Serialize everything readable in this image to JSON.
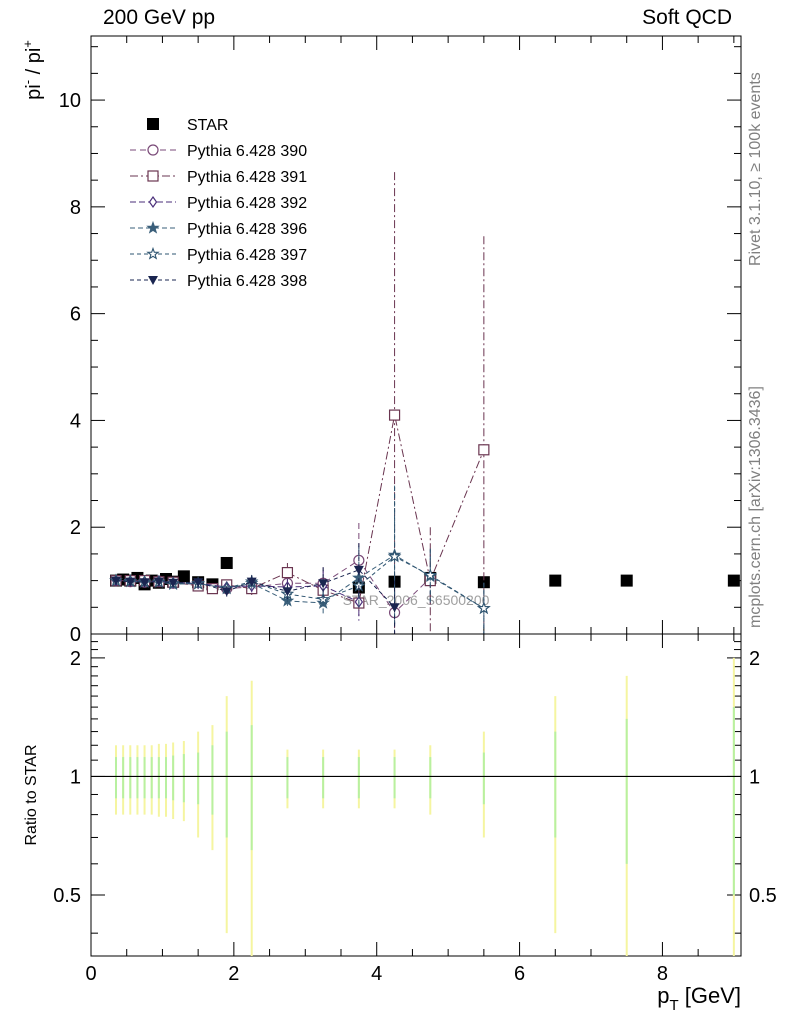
{
  "header": {
    "left": "200 GeV pp",
    "right": "Soft QCD"
  },
  "side_text": {
    "rivet": "Rivet 3.1.10, ≥ 100k events",
    "mcplots": "mcplots.cern.ch [arXiv:1306.3436]"
  },
  "watermark": "STAR_2006_S6500200",
  "chart_data": [
    {
      "type": "scatter",
      "panel": "main",
      "xlabel": "p_T [GeV]",
      "ylabel": "pi- / pi+",
      "xlim": [
        0,
        9.1
      ],
      "ylim": [
        0,
        11.2
      ],
      "x_ticks": [
        0,
        2,
        4,
        6,
        8
      ],
      "y_ticks": [
        0,
        2,
        4,
        6,
        8,
        10
      ],
      "legend_position": "top-left",
      "series": [
        {
          "name": "STAR",
          "color": "#000000",
          "marker": "filled-square",
          "points": [
            {
              "x": 0.35,
              "y": 1.0
            },
            {
              "x": 0.45,
              "y": 1.02
            },
            {
              "x": 0.55,
              "y": 1.0
            },
            {
              "x": 0.65,
              "y": 1.05
            },
            {
              "x": 0.75,
              "y": 0.93
            },
            {
              "x": 0.85,
              "y": 1.0
            },
            {
              "x": 0.95,
              "y": 0.96
            },
            {
              "x": 1.05,
              "y": 1.03
            },
            {
              "x": 1.15,
              "y": 0.98
            },
            {
              "x": 1.3,
              "y": 1.08
            },
            {
              "x": 1.5,
              "y": 0.97
            },
            {
              "x": 1.7,
              "y": 0.93
            },
            {
              "x": 1.9,
              "y": 1.33
            },
            {
              "x": 3.75,
              "y": 0.87
            },
            {
              "x": 4.25,
              "y": 0.98
            },
            {
              "x": 4.75,
              "y": 1.05
            },
            {
              "x": 5.5,
              "y": 0.97
            },
            {
              "x": 6.5,
              "y": 1.0
            },
            {
              "x": 7.5,
              "y": 1.0
            },
            {
              "x": 9.0,
              "y": 1.0
            }
          ]
        },
        {
          "name": "Pythia 6.428 390",
          "color": "#7a4a78",
          "marker": "open-circle",
          "dash": "6,4",
          "points": [
            {
              "x": 0.35,
              "y": 1.0,
              "err": 0.05
            },
            {
              "x": 0.55,
              "y": 0.98,
              "err": 0.05
            },
            {
              "x": 0.75,
              "y": 0.97,
              "err": 0.05
            },
            {
              "x": 0.95,
              "y": 0.99,
              "err": 0.06
            },
            {
              "x": 1.15,
              "y": 0.95,
              "err": 0.07
            },
            {
              "x": 1.5,
              "y": 0.93,
              "err": 0.08
            },
            {
              "x": 1.9,
              "y": 0.85,
              "err": 0.1
            },
            {
              "x": 2.25,
              "y": 0.88,
              "err": 0.12
            },
            {
              "x": 2.75,
              "y": 0.95,
              "err": 0.15
            },
            {
              "x": 3.25,
              "y": 0.95,
              "err": 0.3
            },
            {
              "x": 3.75,
              "y": 1.38,
              "err": 0.7
            },
            {
              "x": 4.25,
              "y": 0.4,
              "err": 0.4
            },
            {
              "x": 4.75,
              "y": 1.05,
              "err": 0.5
            }
          ]
        },
        {
          "name": "Pythia 6.428 391",
          "color": "#6a3550",
          "marker": "open-square",
          "dash": "8,3,2,3",
          "points": [
            {
              "x": 0.35,
              "y": 1.0,
              "err": 0.05
            },
            {
              "x": 0.55,
              "y": 1.0,
              "err": 0.05
            },
            {
              "x": 0.75,
              "y": 1.0,
              "err": 0.05
            },
            {
              "x": 0.95,
              "y": 0.98,
              "err": 0.06
            },
            {
              "x": 1.15,
              "y": 0.97,
              "err": 0.07
            },
            {
              "x": 1.5,
              "y": 0.9,
              "err": 0.08
            },
            {
              "x": 1.7,
              "y": 0.85,
              "err": 0.08
            },
            {
              "x": 1.9,
              "y": 0.92,
              "err": 0.1
            },
            {
              "x": 2.25,
              "y": 0.85,
              "err": 0.12
            },
            {
              "x": 2.75,
              "y": 1.15,
              "err": 0.18
            },
            {
              "x": 3.25,
              "y": 0.82,
              "err": 0.3
            },
            {
              "x": 3.75,
              "y": 0.58,
              "err": 0.3
            },
            {
              "x": 4.25,
              "y": 4.1,
              "err": 4.55
            },
            {
              "x": 4.75,
              "y": 1.0,
              "err": 1.0
            },
            {
              "x": 5.5,
              "y": 3.45,
              "err": 4.0
            }
          ]
        },
        {
          "name": "Pythia 6.428 392",
          "color": "#4a2e7a",
          "marker": "open-diamond",
          "dash": "6,3",
          "points": [
            {
              "x": 0.35,
              "y": 1.0,
              "err": 0.05
            },
            {
              "x": 0.55,
              "y": 0.99,
              "err": 0.05
            },
            {
              "x": 0.75,
              "y": 0.98,
              "err": 0.05
            },
            {
              "x": 0.95,
              "y": 0.99,
              "err": 0.06
            },
            {
              "x": 1.15,
              "y": 0.96,
              "err": 0.07
            },
            {
              "x": 1.5,
              "y": 0.95,
              "err": 0.08
            },
            {
              "x": 1.9,
              "y": 0.88,
              "err": 0.1
            },
            {
              "x": 2.25,
              "y": 0.9,
              "err": 0.12
            },
            {
              "x": 2.75,
              "y": 0.88,
              "err": 0.15
            },
            {
              "x": 3.25,
              "y": 0.9,
              "err": 0.3
            },
            {
              "x": 3.75,
              "y": 0.6,
              "err": 0.35
            }
          ]
        },
        {
          "name": "Pythia 6.428 396",
          "color": "#3a5f7a",
          "marker": "filled-star",
          "dash": "5,3",
          "points": [
            {
              "x": 0.35,
              "y": 1.0,
              "err": 0.05
            },
            {
              "x": 0.55,
              "y": 0.98,
              "err": 0.05
            },
            {
              "x": 0.75,
              "y": 0.97,
              "err": 0.05
            },
            {
              "x": 0.95,
              "y": 0.98,
              "err": 0.06
            },
            {
              "x": 1.15,
              "y": 0.93,
              "err": 0.07
            },
            {
              "x": 1.5,
              "y": 0.95,
              "err": 0.08
            },
            {
              "x": 1.9,
              "y": 0.85,
              "err": 0.1
            },
            {
              "x": 2.25,
              "y": 0.95,
              "err": 0.12
            },
            {
              "x": 2.75,
              "y": 0.62,
              "err": 0.15
            },
            {
              "x": 3.25,
              "y": 0.58,
              "err": 0.2
            },
            {
              "x": 3.75,
              "y": 1.05,
              "err": 0.6
            },
            {
              "x": 4.25,
              "y": 1.48,
              "err": 1.3
            },
            {
              "x": 4.75,
              "y": 1.08,
              "err": 0.5
            },
            {
              "x": 5.5,
              "y": 0.48,
              "err": 0.48
            }
          ]
        },
        {
          "name": "Pythia 6.428 397",
          "color": "#2e5470",
          "marker": "open-star",
          "dash": "4,3",
          "points": [
            {
              "x": 0.35,
              "y": 1.0,
              "err": 0.05
            },
            {
              "x": 0.55,
              "y": 0.99,
              "err": 0.05
            },
            {
              "x": 0.75,
              "y": 0.98,
              "err": 0.05
            },
            {
              "x": 0.95,
              "y": 0.97,
              "err": 0.06
            },
            {
              "x": 1.15,
              "y": 0.95,
              "err": 0.07
            },
            {
              "x": 1.5,
              "y": 0.94,
              "err": 0.08
            },
            {
              "x": 1.9,
              "y": 0.86,
              "err": 0.1
            },
            {
              "x": 2.25,
              "y": 0.98,
              "err": 0.12
            },
            {
              "x": 2.75,
              "y": 0.75,
              "err": 0.15
            },
            {
              "x": 3.25,
              "y": 0.65,
              "err": 0.2
            },
            {
              "x": 3.75,
              "y": 0.9,
              "err": 0.4
            },
            {
              "x": 4.25,
              "y": 1.45,
              "err": 1.3
            },
            {
              "x": 4.75,
              "y": 1.1,
              "err": 0.5
            },
            {
              "x": 5.5,
              "y": 0.48,
              "err": 0.48
            }
          ]
        },
        {
          "name": "Pythia 6.428 398",
          "color": "#1a2550",
          "marker": "filled-triangle-down",
          "dash": "4,3",
          "points": [
            {
              "x": 0.35,
              "y": 1.0,
              "err": 0.05
            },
            {
              "x": 0.55,
              "y": 0.98,
              "err": 0.05
            },
            {
              "x": 0.75,
              "y": 0.97,
              "err": 0.05
            },
            {
              "x": 0.95,
              "y": 0.98,
              "err": 0.06
            },
            {
              "x": 1.15,
              "y": 0.96,
              "err": 0.07
            },
            {
              "x": 1.5,
              "y": 0.97,
              "err": 0.08
            },
            {
              "x": 1.9,
              "y": 0.8,
              "err": 0.1
            },
            {
              "x": 2.25,
              "y": 0.98,
              "err": 0.12
            },
            {
              "x": 2.75,
              "y": 0.8,
              "err": 0.15
            },
            {
              "x": 3.25,
              "y": 0.95,
              "err": 0.3
            },
            {
              "x": 3.75,
              "y": 1.2,
              "err": 0.5
            },
            {
              "x": 4.25,
              "y": 0.5,
              "err": 0.5
            }
          ]
        }
      ]
    },
    {
      "type": "line",
      "panel": "ratio",
      "ylabel": "Ratio to STAR",
      "xlabel": "p_T [GeV]",
      "xlim": [
        0,
        9.1
      ],
      "ylim": [
        0.35,
        2.3
      ],
      "log_y": true,
      "y_ticks": [
        0.5,
        1,
        2
      ],
      "reference": 1.0,
      "band_colors": {
        "stat": "#b8f0a0",
        "total": "#f5f5a0"
      },
      "bands": [
        {
          "x": 0.35,
          "stat": 0.12,
          "total": 0.2
        },
        {
          "x": 0.45,
          "stat": 0.12,
          "total": 0.2
        },
        {
          "x": 0.55,
          "stat": 0.12,
          "total": 0.2
        },
        {
          "x": 0.65,
          "stat": 0.12,
          "total": 0.2
        },
        {
          "x": 0.75,
          "stat": 0.12,
          "total": 0.2
        },
        {
          "x": 0.85,
          "stat": 0.12,
          "total": 0.2
        },
        {
          "x": 0.95,
          "stat": 0.12,
          "total": 0.21
        },
        {
          "x": 1.05,
          "stat": 0.12,
          "total": 0.21
        },
        {
          "x": 1.15,
          "stat": 0.13,
          "total": 0.22
        },
        {
          "x": 1.3,
          "stat": 0.14,
          "total": 0.23
        },
        {
          "x": 1.5,
          "stat": 0.15,
          "total": 0.3
        },
        {
          "x": 1.7,
          "stat": 0.2,
          "total": 0.35
        },
        {
          "x": 1.9,
          "stat": 0.3,
          "total": 0.6
        },
        {
          "x": 2.25,
          "stat": 0.35,
          "total": 0.75
        },
        {
          "x": 2.75,
          "stat": 0.12,
          "total": 0.17
        },
        {
          "x": 3.25,
          "stat": 0.12,
          "total": 0.17
        },
        {
          "x": 3.75,
          "stat": 0.12,
          "total": 0.17
        },
        {
          "x": 4.25,
          "stat": 0.12,
          "total": 0.17
        },
        {
          "x": 4.75,
          "stat": 0.12,
          "total": 0.2
        },
        {
          "x": 5.5,
          "stat": 0.15,
          "total": 0.3
        },
        {
          "x": 6.5,
          "stat": 0.3,
          "total": 0.6
        },
        {
          "x": 7.5,
          "stat": 0.4,
          "total": 0.8
        },
        {
          "x": 9.0,
          "stat": 0.5,
          "total": 1.0
        }
      ]
    }
  ]
}
